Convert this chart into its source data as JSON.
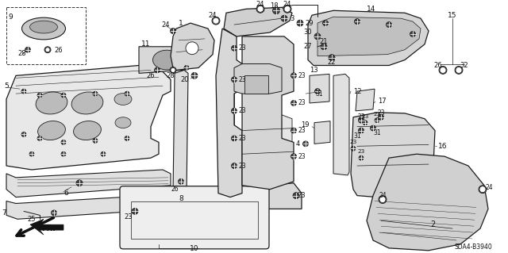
{
  "diagram_code": "SDA4-B3940",
  "bg": "#ffffff",
  "lc": "#1a1a1a",
  "fig_w": 6.4,
  "fig_h": 3.19,
  "dpi": 100,
  "lw": 0.7,
  "fs": 6.5,
  "fc_part": "#f0f0f0",
  "fc_white": "#ffffff",
  "fc_dark": "#c0c0c0"
}
